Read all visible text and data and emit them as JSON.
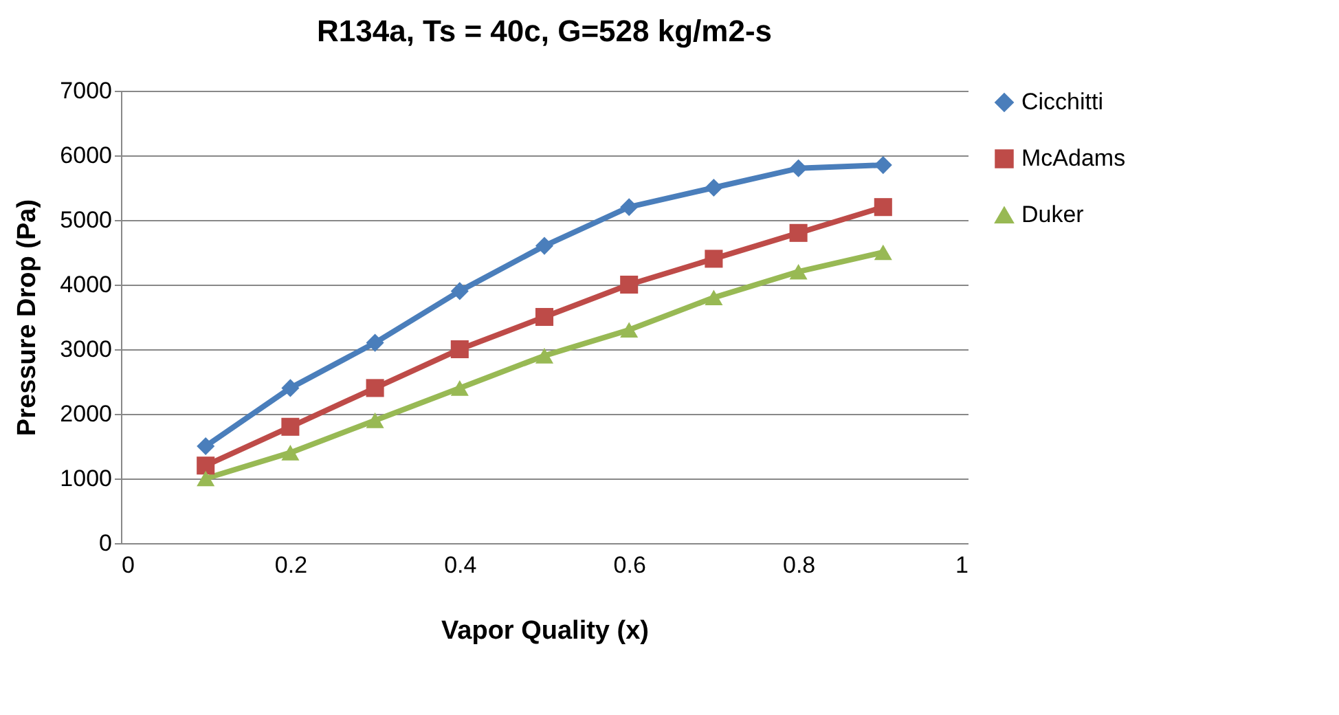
{
  "chart_data": {
    "type": "line",
    "title": "R134a, Ts = 40c, G=528 kg/m2-s",
    "xlabel": "Vapor Quality (x)",
    "ylabel": "Pressure Drop (Pa)",
    "x": [
      0.1,
      0.2,
      0.3,
      0.4,
      0.5,
      0.6,
      0.7,
      0.8,
      0.9
    ],
    "series": [
      {
        "name": "Cicchitti",
        "color": "#4a7ebb",
        "marker": "diamond",
        "values": [
          1500,
          2400,
          3100,
          3900,
          4600,
          5200,
          5500,
          5800,
          5850
        ]
      },
      {
        "name": "McAdams",
        "color": "#be4b48",
        "marker": "square",
        "values": [
          1200,
          1800,
          2400,
          3000,
          3500,
          4000,
          4400,
          4800,
          5200
        ]
      },
      {
        "name": "Duker",
        "color": "#98b954",
        "marker": "triangle",
        "values": [
          1000,
          1400,
          1900,
          2400,
          2900,
          3300,
          3800,
          4200,
          4500
        ]
      }
    ],
    "xlim": [
      0,
      1
    ],
    "xticks": [
      0,
      0.2,
      0.4,
      0.6,
      0.8,
      1
    ],
    "ylim": [
      0,
      7000
    ],
    "yticks": [
      0,
      1000,
      2000,
      3000,
      4000,
      5000,
      6000,
      7000
    ],
    "grid": "y",
    "legend": "right",
    "line_style": "solid"
  }
}
